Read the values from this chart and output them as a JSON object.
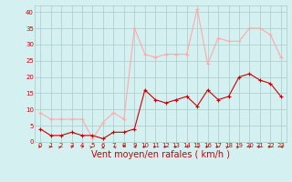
{
  "hours": [
    0,
    1,
    2,
    3,
    4,
    5,
    6,
    7,
    8,
    9,
    10,
    11,
    12,
    13,
    14,
    15,
    16,
    17,
    18,
    19,
    20,
    21,
    22,
    23
  ],
  "vent_moyen": [
    4,
    2,
    2,
    3,
    2,
    2,
    1,
    3,
    3,
    4,
    16,
    13,
    12,
    13,
    14,
    11,
    16,
    13,
    14,
    20,
    21,
    19,
    18,
    14
  ],
  "rafales": [
    9,
    7,
    7,
    7,
    7,
    1,
    6,
    9,
    7,
    35,
    27,
    26,
    27,
    27,
    27,
    41,
    24,
    32,
    31,
    31,
    35,
    35,
    33,
    26
  ],
  "color_moyen": "#cc0000",
  "color_rafales": "#ffaaaa",
  "bg_color": "#d4f0f0",
  "grid_color": "#aacccc",
  "xlabel": "Vent moyen/en rafales ( km/h )",
  "yticks": [
    0,
    5,
    10,
    15,
    20,
    25,
    30,
    35,
    40
  ],
  "ylim": [
    0,
    42
  ],
  "xlim": [
    -0.5,
    23.5
  ],
  "xlabel_fontsize": 7,
  "tick_fontsize": 5,
  "linewidth": 0.8,
  "marker_size": 3
}
